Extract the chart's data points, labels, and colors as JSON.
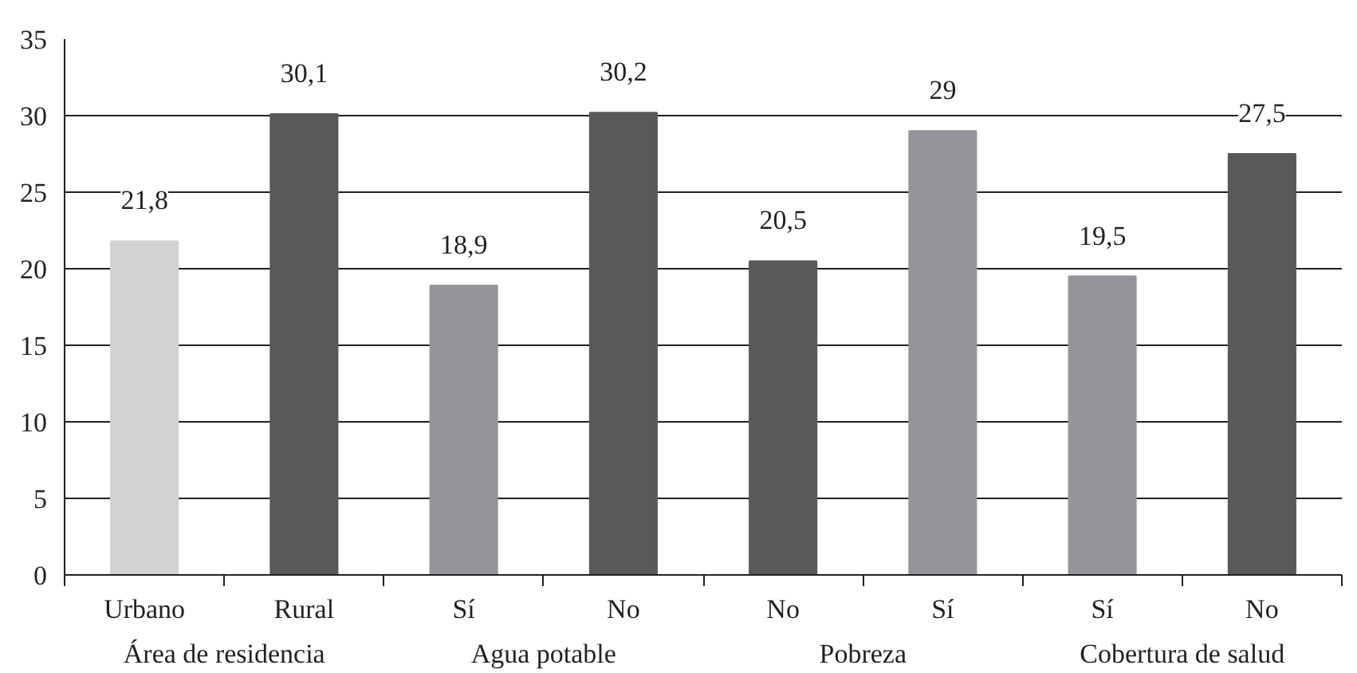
{
  "chart_data": {
    "type": "bar",
    "categories": [
      "Urbano",
      "Rural",
      "Sí",
      "No",
      "No",
      "Sí",
      "Sí",
      "No"
    ],
    "values": [
      21.8,
      30.1,
      18.9,
      30.2,
      20.5,
      29,
      19.5,
      27.5
    ],
    "colors": [
      "#d1d2d4",
      "#58595b",
      "#939598",
      "#58595b",
      "#58595b",
      "#939598",
      "#939598",
      "#58595b"
    ],
    "value_labels": [
      "21,8",
      "30,1",
      "18,9",
      "30,2",
      "20,5",
      "29",
      "19,5",
      "27,5"
    ],
    "annotations": [
      "Área de residencia",
      "Agua potable",
      "Pobreza",
      "Cobertura de salud"
    ],
    "ylim": [
      0,
      35
    ],
    "yticks": [
      0,
      5,
      10,
      15,
      20,
      25,
      30,
      35
    ],
    "grid": "y"
  }
}
